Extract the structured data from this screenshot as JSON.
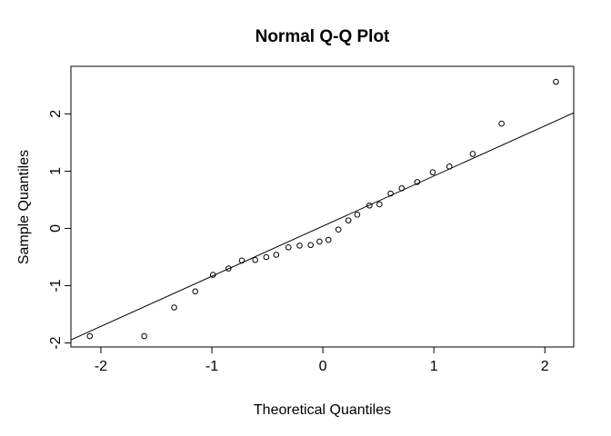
{
  "figure": {
    "background_color": "#ffffff",
    "foreground_color": "#000000"
  },
  "chart_data": {
    "type": "scatter",
    "title": "Normal Q-Q Plot",
    "xlabel": "Theoretical Quantiles",
    "ylabel": "Sample Quantiles",
    "marker": "open-circle",
    "grid": false,
    "legend": "none",
    "xlim": [
      -2.27,
      2.26
    ],
    "ylim": [
      -2.07,
      2.83
    ],
    "x_ticks": [
      -2,
      -1,
      0,
      1,
      2
    ],
    "y_ticks": [
      -2,
      -1,
      0,
      1,
      2
    ],
    "x": [
      -2.1,
      -1.61,
      -1.34,
      -1.15,
      -0.99,
      -0.85,
      -0.73,
      -0.61,
      -0.51,
      -0.42,
      -0.31,
      -0.21,
      -0.11,
      -0.03,
      0.05,
      0.14,
      0.23,
      0.31,
      0.42,
      0.51,
      0.61,
      0.71,
      0.85,
      0.99,
      1.14,
      1.35,
      1.61,
      2.1
    ],
    "y": [
      -1.88,
      -1.88,
      -1.38,
      -1.1,
      -0.81,
      -0.7,
      -0.56,
      -0.55,
      -0.5,
      -0.46,
      -0.33,
      -0.3,
      -0.29,
      -0.23,
      -0.2,
      -0.02,
      0.14,
      0.24,
      0.4,
      0.42,
      0.61,
      0.7,
      0.81,
      0.98,
      1.08,
      1.3,
      1.83,
      2.56
    ],
    "reference_line": {
      "kind": "qqline",
      "intercept": 0.04,
      "slope": 0.875
    }
  }
}
